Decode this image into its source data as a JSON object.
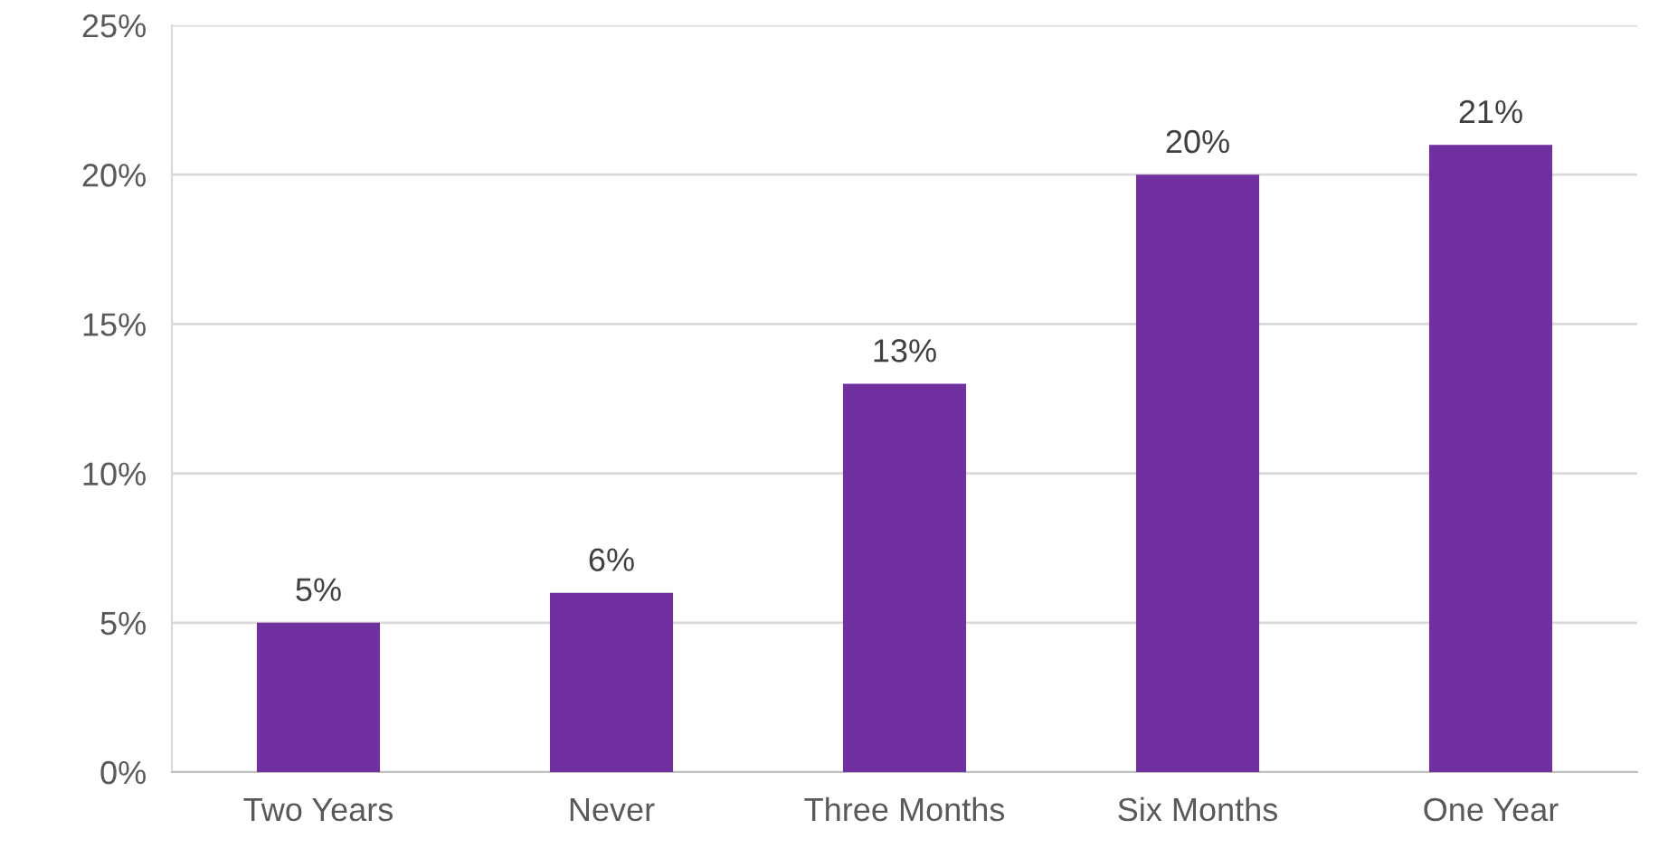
{
  "chart_data": {
    "type": "bar",
    "categories": [
      "Two Years",
      "Never",
      "Three Months",
      "Six Months",
      "One Year"
    ],
    "values": [
      5,
      6,
      13,
      20,
      21
    ],
    "value_labels": [
      "5%",
      "6%",
      "13%",
      "20%",
      "21%"
    ],
    "color": "#7030a0",
    "ylim": [
      0,
      25
    ],
    "yticks": [
      {
        "value": 0,
        "label": "0%"
      },
      {
        "value": 5,
        "label": "5%"
      },
      {
        "value": 10,
        "label": "10%"
      },
      {
        "value": 15,
        "label": "15%"
      },
      {
        "value": 20,
        "label": "20%"
      },
      {
        "value": 25,
        "label": "25%"
      }
    ],
    "grid": "y",
    "legend": false
  }
}
